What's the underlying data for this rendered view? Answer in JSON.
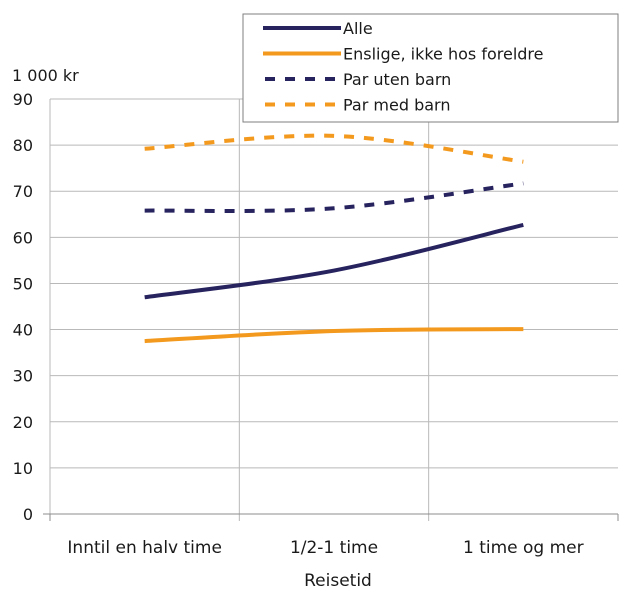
{
  "chart_data": {
    "type": "line",
    "ylabel": "1 000 kr",
    "xlabel": "Reisetid",
    "categories": [
      "Inntil en halv time",
      "1/2-1 time",
      "1 time og mer"
    ],
    "ylim": [
      0,
      90
    ],
    "yticks": [
      0,
      10,
      20,
      30,
      40,
      50,
      60,
      70,
      80,
      90
    ],
    "grid": true,
    "legend_position": "top-right",
    "series": [
      {
        "name": "Alle",
        "values": [
          47,
          52.8,
          62.7
        ],
        "color": "#27235f",
        "style": "solid"
      },
      {
        "name": "Enslige, ikke hos foreldre",
        "values": [
          37.5,
          39.7,
          40.1
        ],
        "color": "#f39a1e",
        "style": "solid"
      },
      {
        "name": "Par uten barn",
        "values": [
          65.8,
          66.3,
          71.7
        ],
        "color": "#27235f",
        "style": "dashed"
      },
      {
        "name": "Par med barn",
        "values": [
          79.2,
          82,
          76.4
        ],
        "color": "#f39a1e",
        "style": "dashed"
      }
    ]
  }
}
